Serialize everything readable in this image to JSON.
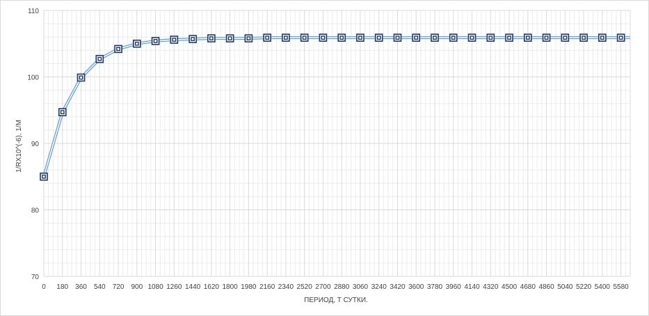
{
  "chart_data": {
    "type": "line",
    "title": "",
    "xlabel": "ПЕРИОД, Т СУТКИ.",
    "ylabel": "1/RX10^(-6), 1/M",
    "ylim": [
      70,
      110
    ],
    "yticks": [
      70,
      80,
      90,
      100,
      110
    ],
    "grid": true,
    "legend": "none",
    "colors": {
      "line": "#9dc3e6",
      "marker_edge": "#1f3864",
      "grid": "#d9d9d9"
    },
    "series": [
      {
        "x": [
          0,
          180,
          360,
          540,
          720,
          900,
          1080,
          1260,
          1440,
          1620,
          1800,
          1980,
          2160,
          2340,
          2520,
          2700,
          2880,
          3060,
          3240,
          3420,
          3600,
          3780,
          3960,
          4140,
          4320,
          4500,
          4680,
          4860,
          5040,
          5220,
          5400,
          5580
        ],
        "values": [
          85.0,
          94.7,
          99.9,
          102.7,
          104.2,
          105.0,
          105.4,
          105.6,
          105.7,
          105.8,
          105.8,
          105.8,
          105.9,
          105.9,
          105.9,
          105.9,
          105.9,
          105.9,
          105.9,
          105.9,
          105.9,
          105.9,
          105.9,
          105.9,
          105.9,
          105.9,
          105.9,
          105.9,
          105.9,
          105.9,
          105.9,
          105.9
        ]
      }
    ],
    "xtick_labels": [
      "0",
      "180",
      "360",
      "540",
      "720",
      "900",
      "1080",
      "1260",
      "1440",
      "1620",
      "1800",
      "1980",
      "2160",
      "2340",
      "2520",
      "2700",
      "2880",
      "3060",
      "3240",
      "3420",
      "3600",
      "3780",
      "3960",
      "4140",
      "4320",
      "4500",
      "4680",
      "4860",
      "5040",
      "5220",
      "5400",
      "5580"
    ]
  }
}
